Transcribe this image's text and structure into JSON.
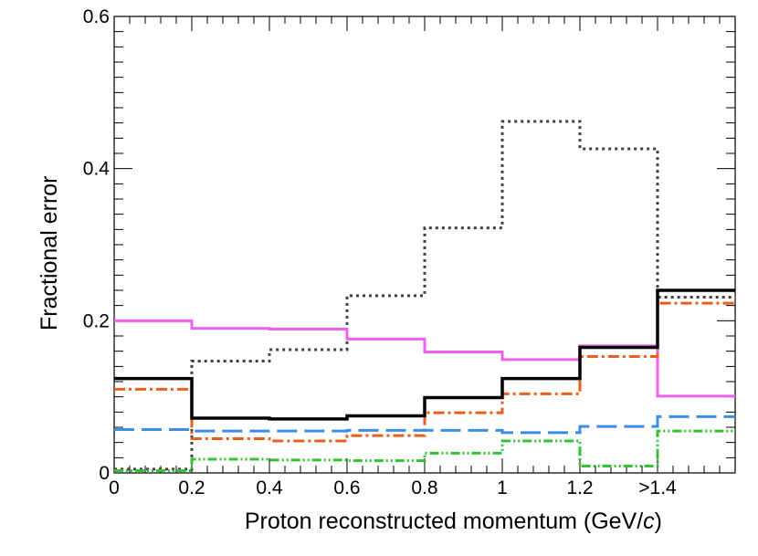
{
  "chart_data": {
    "type": "step",
    "xlabel": "Proton reconstructed momentum (GeV/",
    "xlabel_italic": "c",
    "xlabel_close": ")",
    "ylabel": "Fractional error",
    "xlim": [
      0,
      1.6
    ],
    "ylim": [
      0,
      0.6
    ],
    "grid": false,
    "legend": "none",
    "bin_edges": [
      0,
      0.2,
      0.4,
      0.6,
      0.8,
      1.0,
      1.2,
      1.4,
      1.6
    ],
    "x_tick_labels": [
      {
        "value": 0,
        "label": "0"
      },
      {
        "value": 0.2,
        "label": "0.2"
      },
      {
        "value": 0.4,
        "label": "0.4"
      },
      {
        "value": 0.6,
        "label": "0.6"
      },
      {
        "value": 0.8,
        "label": "0.8"
      },
      {
        "value": 1.0,
        "label": "1"
      },
      {
        "value": 1.2,
        "label": "1.2"
      },
      {
        "value": 1.4,
        "label": ">1.4"
      }
    ],
    "y_tick_labels": [
      {
        "value": 0,
        "label": "0"
      },
      {
        "value": 0.2,
        "label": "0.2"
      },
      {
        "value": 0.4,
        "label": "0.4"
      },
      {
        "value": 0.6,
        "label": "0.6"
      }
    ],
    "series": [
      {
        "name": "dotted-gray",
        "color": "#404040",
        "style": "dotted",
        "values": [
          0.005,
          0.147,
          0.162,
          0.233,
          0.322,
          0.462,
          0.426,
          0.231
        ]
      },
      {
        "name": "solid-magenta",
        "color": "#f060f0",
        "style": "solid",
        "values": [
          0.2,
          0.19,
          0.189,
          0.176,
          0.159,
          0.149,
          0.167,
          0.101
        ]
      },
      {
        "name": "dashdot-orange",
        "color": "#e8601c",
        "style": "dashdot",
        "values": [
          0.11,
          0.045,
          0.042,
          0.049,
          0.079,
          0.104,
          0.153,
          0.223
        ]
      },
      {
        "name": "dashed-blue",
        "color": "#3a8ee8",
        "style": "dashed",
        "values": [
          0.057,
          0.055,
          0.055,
          0.056,
          0.056,
          0.053,
          0.061,
          0.074
        ]
      },
      {
        "name": "dashdotdot-green",
        "color": "#33c233",
        "style": "dashdotdot",
        "values": [
          0.003,
          0.018,
          0.017,
          0.016,
          0.026,
          0.042,
          0.009,
          0.055
        ]
      },
      {
        "name": "solid-black",
        "color": "#000000",
        "style": "solid-thick",
        "values": [
          0.124,
          0.072,
          0.071,
          0.075,
          0.099,
          0.124,
          0.165,
          0.24
        ]
      }
    ]
  }
}
